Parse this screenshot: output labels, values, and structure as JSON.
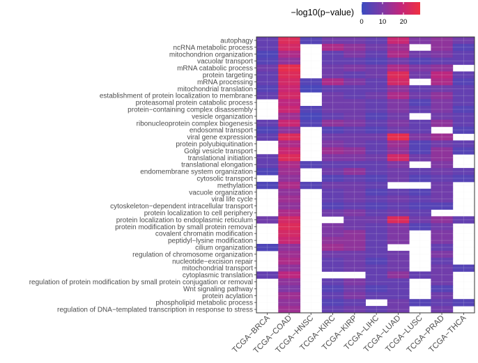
{
  "chart_data": {
    "type": "heatmap",
    "title": "",
    "xlabel": "",
    "ylabel": "",
    "legend": {
      "title": "−log10(p−value)",
      "ticks": [
        0,
        10,
        20
      ],
      "range": [
        0,
        28
      ],
      "position": "top-right",
      "colors": [
        "#3b4cc0",
        "#7a3aa8",
        "#c2267c",
        "#f03040"
      ]
    },
    "columns": [
      "TCGA−BRCA",
      "TCGA−COAD",
      "TCGA−HNSC",
      "TCGA−KIRC",
      "TCGA−KIRP",
      "TCGA−LIHC",
      "TCGA−LUAD",
      "TCGA−LUSC",
      "TCGA−PRAD",
      "TCGA−THCA"
    ],
    "rows": [
      {
        "label": "autophagy",
        "values": [
          6,
          24,
          4,
          8,
          8,
          6,
          20,
          10,
          12,
          8
        ]
      },
      {
        "label": "ncRNA metabolic process",
        "values": [
          6,
          22,
          null,
          16,
          12,
          8,
          14,
          null,
          12,
          4
        ]
      },
      {
        "label": "mitochondrion organization",
        "values": [
          3,
          16,
          null,
          6,
          10,
          6,
          16,
          8,
          10,
          6
        ]
      },
      {
        "label": "vacuolar transport",
        "values": [
          4,
          12,
          null,
          6,
          6,
          4,
          8,
          4,
          6,
          6
        ]
      },
      {
        "label": "mRNA catabolic process",
        "values": [
          8,
          26,
          null,
          8,
          10,
          8,
          16,
          10,
          12,
          null
        ]
      },
      {
        "label": "protein targeting",
        "values": [
          6,
          24,
          null,
          8,
          6,
          8,
          24,
          8,
          18,
          6
        ]
      },
      {
        "label": "mRNA processing",
        "values": [
          6,
          22,
          4,
          16,
          10,
          6,
          22,
          null,
          16,
          4
        ]
      },
      {
        "label": "mitochondrial translation",
        "values": [
          4,
          20,
          2,
          6,
          6,
          6,
          12,
          6,
          8,
          6
        ]
      },
      {
        "label": "establishment of protein localization to membrane",
        "values": [
          6,
          22,
          null,
          8,
          6,
          8,
          16,
          8,
          12,
          6
        ]
      },
      {
        "label": "proteasomal protein catabolic process",
        "values": [
          null,
          18,
          null,
          8,
          8,
          6,
          10,
          4,
          10,
          6
        ]
      },
      {
        "label": "protein−containing complex disassembly",
        "values": [
          null,
          20,
          4,
          8,
          8,
          6,
          10,
          6,
          10,
          4
        ]
      },
      {
        "label": "vesicle organization",
        "values": [
          null,
          14,
          2,
          6,
          8,
          4,
          8,
          null,
          8,
          6
        ]
      },
      {
        "label": "ribonucleoprotein complex biogenesis",
        "values": [
          6,
          20,
          4,
          12,
          10,
          6,
          10,
          6,
          12,
          6
        ]
      },
      {
        "label": "endosomal transport",
        "values": [
          3,
          12,
          null,
          4,
          6,
          4,
          8,
          6,
          null,
          4
        ]
      },
      {
        "label": "viral gene expression",
        "values": [
          6,
          24,
          null,
          8,
          8,
          8,
          26,
          10,
          14,
          null
        ]
      },
      {
        "label": "protein polyubiquitination",
        "values": [
          null,
          16,
          null,
          10,
          8,
          6,
          14,
          4,
          8,
          6
        ]
      },
      {
        "label": "Golgi vesicle transport",
        "values": [
          null,
          20,
          null,
          14,
          12,
          6,
          12,
          4,
          12,
          4
        ]
      },
      {
        "label": "translational initiation",
        "values": [
          6,
          24,
          null,
          10,
          10,
          8,
          22,
          8,
          12,
          null
        ]
      },
      {
        "label": "translational elongation",
        "values": [
          6,
          16,
          4,
          6,
          6,
          6,
          10,
          null,
          10,
          null
        ]
      },
      {
        "label": "endomembrane system organization",
        "values": [
          3,
          14,
          null,
          8,
          12,
          6,
          8,
          6,
          8,
          6
        ]
      },
      {
        "label": "cytosolic transport",
        "values": [
          null,
          12,
          null,
          4,
          6,
          4,
          8,
          4,
          6,
          4
        ]
      },
      {
        "label": "methylation",
        "values": [
          3,
          16,
          4,
          8,
          8,
          6,
          null,
          null,
          8,
          null
        ]
      },
      {
        "label": "vacuole organization",
        "values": [
          null,
          12,
          null,
          6,
          8,
          4,
          6,
          4,
          8,
          null
        ]
      },
      {
        "label": "viral life cycle",
        "values": [
          null,
          14,
          null,
          6,
          8,
          6,
          8,
          6,
          8,
          null
        ]
      },
      {
        "label": "cytoskeleton−dependent intracellular transport",
        "values": [
          null,
          12,
          null,
          4,
          6,
          4,
          6,
          4,
          4,
          null
        ]
      },
      {
        "label": "protein localization to cell periphery",
        "values": [
          null,
          16,
          null,
          8,
          10,
          6,
          8,
          6,
          null,
          null
        ]
      },
      {
        "label": "protein localization to endoplasmic reticulum",
        "values": [
          8,
          22,
          null,
          null,
          8,
          8,
          24,
          8,
          12,
          6
        ]
      },
      {
        "label": "protein modification by small protein removal",
        "values": [
          null,
          24,
          null,
          10,
          8,
          6,
          10,
          4,
          8,
          null
        ]
      },
      {
        "label": "covalent chromatin modification",
        "values": [
          null,
          22,
          null,
          10,
          12,
          6,
          10,
          null,
          10,
          null
        ]
      },
      {
        "label": "peptidyl−lysine modification",
        "values": [
          null,
          20,
          null,
          12,
          12,
          6,
          10,
          null,
          10,
          null
        ]
      },
      {
        "label": "cilium organization",
        "values": [
          3,
          12,
          null,
          14,
          12,
          6,
          null,
          null,
          6,
          null
        ]
      },
      {
        "label": "regulation of chromosome organization",
        "values": [
          null,
          14,
          null,
          8,
          8,
          6,
          8,
          null,
          10,
          null
        ]
      },
      {
        "label": "nucleotide−excision repair",
        "values": [
          null,
          16,
          null,
          6,
          8,
          4,
          8,
          null,
          6,
          null
        ]
      },
      {
        "label": "mitochondrial transport",
        "values": [
          null,
          12,
          null,
          6,
          8,
          6,
          8,
          null,
          8,
          4
        ]
      },
      {
        "label": "cytoplasmic translation",
        "values": [
          6,
          18,
          null,
          null,
          null,
          6,
          12,
          6,
          8,
          null
        ]
      },
      {
        "label": "regulation of protein modification by small protein conjugation or removal",
        "values": [
          null,
          12,
          null,
          6,
          10,
          6,
          6,
          null,
          8,
          null
        ]
      },
      {
        "label": "Wnt signaling pathway",
        "values": [
          null,
          10,
          null,
          4,
          8,
          4,
          6,
          null,
          4,
          null
        ]
      },
      {
        "label": "protein acylation",
        "values": [
          null,
          14,
          null,
          6,
          10,
          6,
          6,
          null,
          8,
          null
        ]
      },
      {
        "label": "phospholipid metabolic process",
        "values": [
          null,
          12,
          null,
          4,
          6,
          null,
          8,
          4,
          6,
          4
        ]
      },
      {
        "label": "regulation of DNA−templated transcription in response to stress",
        "values": [
          null,
          14,
          null,
          6,
          8,
          6,
          8,
          null,
          8,
          null
        ]
      }
    ]
  }
}
